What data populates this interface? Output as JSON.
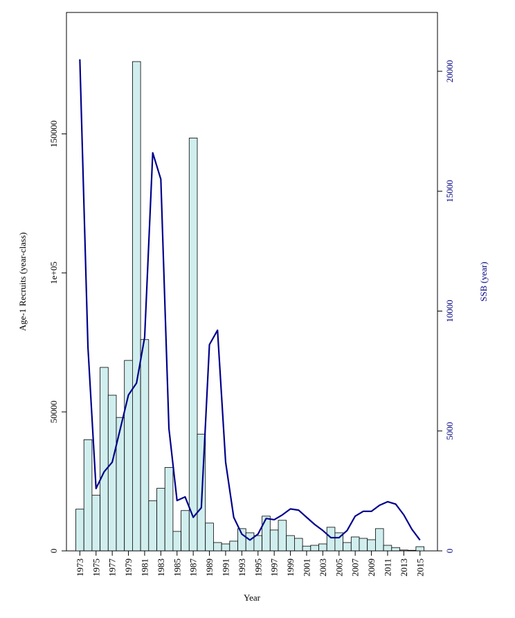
{
  "chart_data": {
    "type": "bar",
    "xlabel": "Year",
    "ylabel": "Age-1 Recruits (year-class)",
    "y2label": "SSB (year)",
    "ylim": [
      0,
      186000
    ],
    "y2lim": [
      0,
      22300
    ],
    "yticks": [
      0,
      50000,
      100000,
      150000
    ],
    "ytick_labels": [
      "0",
      "50000",
      "1e+05",
      "150000"
    ],
    "y2ticks": [
      0,
      5000,
      10000,
      15000,
      20000
    ],
    "y2tick_labels": [
      "0",
      "5000",
      "10000",
      "15000",
      "20000"
    ],
    "xtick_labels": [
      "1973",
      "1975",
      "1977",
      "1979",
      "1981",
      "1983",
      "1985",
      "1987",
      "1989",
      "1991",
      "1993",
      "1995",
      "1997",
      "1999",
      "2001",
      "2003",
      "2005",
      "2007",
      "2009",
      "2011",
      "2013",
      "2015"
    ],
    "categories": [
      1973,
      1974,
      1975,
      1976,
      1977,
      1978,
      1979,
      1980,
      1981,
      1982,
      1983,
      1984,
      1985,
      1986,
      1987,
      1988,
      1989,
      1990,
      1991,
      1992,
      1993,
      1994,
      1995,
      1996,
      1997,
      1998,
      1999,
      2000,
      2001,
      2002,
      2003,
      2004,
      2005,
      2006,
      2007,
      2008,
      2009,
      2010,
      2011,
      2012,
      2013,
      2014,
      2015
    ],
    "series": [
      {
        "name": "",
        "kind": "bar",
        "axis": "left",
        "color": "#d1eeee",
        "values": [
          15000,
          40000,
          20000,
          66000,
          56000,
          48000,
          68500,
          176000,
          76000,
          18000,
          22500,
          30000,
          7000,
          14500,
          148500,
          42000,
          10000,
          3000,
          2500,
          3500,
          8000,
          6500,
          5500,
          12500,
          7500,
          11000,
          5500,
          4500,
          1700,
          2000,
          2500,
          8500,
          6500,
          3000,
          5000,
          4500,
          4000,
          8000,
          2000,
          1200,
          300,
          200,
          1500
        ]
      },
      {
        "name": "",
        "kind": "line",
        "axis": "right",
        "color": "#00008b",
        "values": [
          20500,
          8500,
          2600,
          3300,
          3700,
          5100,
          6500,
          7000,
          8900,
          16600,
          15500,
          5100,
          2100,
          2250,
          1400,
          1800,
          8600,
          9200,
          3700,
          1400,
          700,
          450,
          700,
          1350,
          1300,
          1500,
          1750,
          1700,
          1400,
          1100,
          850,
          550,
          550,
          850,
          1450,
          1650,
          1650,
          1900,
          2050,
          1950,
          1500,
          900,
          450
        ]
      }
    ]
  }
}
